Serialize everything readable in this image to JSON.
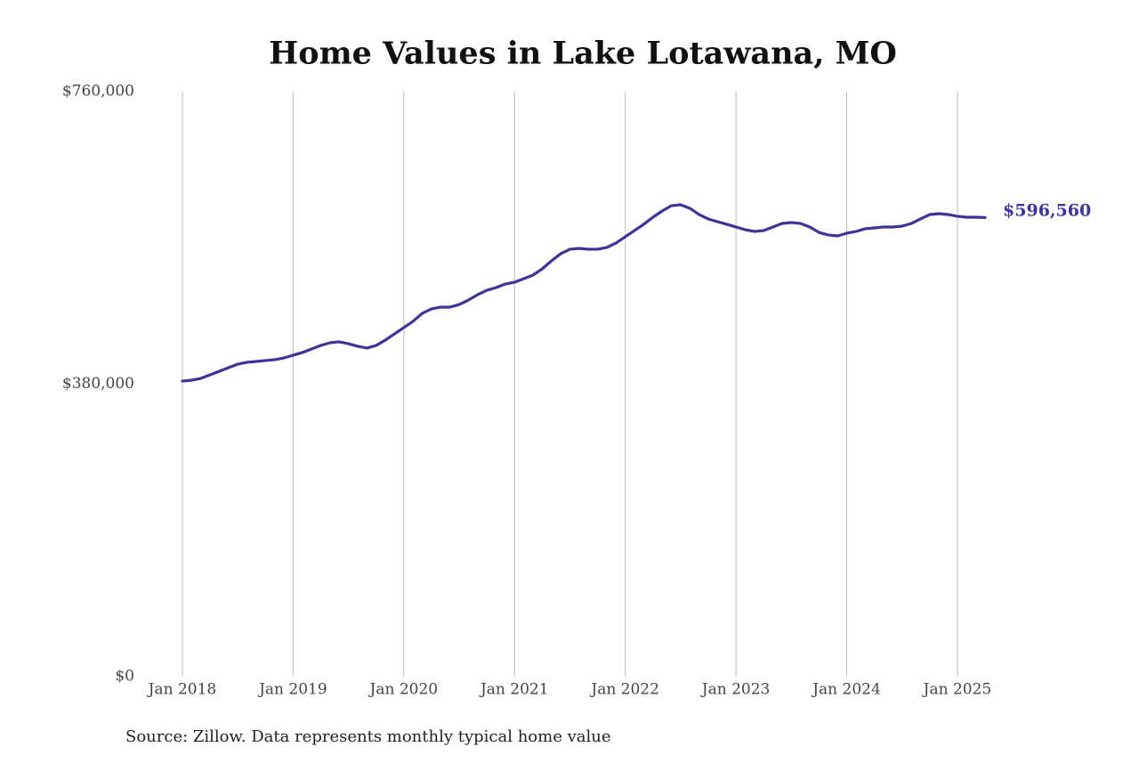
{
  "chart_data": {
    "type": "line",
    "title": "Home Values in Lake Lotawana, MO",
    "source": "Source: Zillow. Data represents monthly typical home value",
    "x": [
      "2018-01",
      "2018-02",
      "2018-03",
      "2018-04",
      "2018-05",
      "2018-06",
      "2018-07",
      "2018-08",
      "2018-09",
      "2018-10",
      "2018-11",
      "2018-12",
      "2019-01",
      "2019-02",
      "2019-03",
      "2019-04",
      "2019-05",
      "2019-06",
      "2019-07",
      "2019-08",
      "2019-09",
      "2019-10",
      "2019-11",
      "2019-12",
      "2020-01",
      "2020-02",
      "2020-03",
      "2020-04",
      "2020-05",
      "2020-06",
      "2020-07",
      "2020-08",
      "2020-09",
      "2020-10",
      "2020-11",
      "2020-12",
      "2021-01",
      "2021-02",
      "2021-03",
      "2021-04",
      "2021-05",
      "2021-06",
      "2021-07",
      "2021-08",
      "2021-09",
      "2021-10",
      "2021-11",
      "2021-12",
      "2022-01",
      "2022-02",
      "2022-03",
      "2022-04",
      "2022-05",
      "2022-06",
      "2022-07",
      "2022-08",
      "2022-09",
      "2022-10",
      "2022-11",
      "2022-12",
      "2023-01",
      "2023-02",
      "2023-03",
      "2023-04",
      "2023-05",
      "2023-06",
      "2023-07",
      "2023-08",
      "2023-09",
      "2023-10",
      "2023-11",
      "2023-12",
      "2024-01",
      "2024-02",
      "2024-03",
      "2024-04",
      "2024-05",
      "2024-06",
      "2024-07",
      "2024-08",
      "2024-09",
      "2024-10",
      "2024-11",
      "2024-12",
      "2025-01",
      "2025-02",
      "2025-03",
      "2025-04"
    ],
    "series": [
      {
        "color": "#3a3597",
        "values": [
          384000,
          385200,
          387500,
          392200,
          396800,
          401400,
          406000,
          408400,
          409500,
          410700,
          411800,
          414100,
          417600,
          421100,
          425700,
          430300,
          433800,
          435000,
          432600,
          429200,
          426900,
          430300,
          437300,
          445400,
          453500,
          461600,
          472000,
          477800,
          480100,
          480100,
          483500,
          489300,
          496300,
          502000,
          505500,
          510100,
          512500,
          517100,
          521700,
          529800,
          540200,
          549500,
          555300,
          556400,
          555300,
          555300,
          557600,
          563400,
          571500,
          579600,
          587700,
          596900,
          605000,
          611900,
          613100,
          608500,
          600400,
          594600,
          591100,
          587700,
          584200,
          580700,
          578400,
          579600,
          584200,
          588800,
          590000,
          588800,
          584200,
          577200,
          573800,
          572600,
          576100,
          578400,
          581900,
          583000,
          584200,
          584200,
          585300,
          588800,
          594600,
          600400,
          601500,
          600400,
          598100,
          596900,
          596900,
          596560
        ],
        "value_labels": [
          null,
          null,
          null,
          null,
          null,
          null,
          null,
          null,
          null,
          null,
          null,
          null,
          null,
          null,
          null,
          null,
          null,
          null,
          null,
          null,
          null,
          null,
          null,
          null,
          null,
          null,
          null,
          null,
          null,
          null,
          null,
          null,
          null,
          null,
          null,
          null,
          null,
          null,
          null,
          null,
          null,
          null,
          null,
          null,
          null,
          null,
          null,
          null,
          null,
          null,
          null,
          null,
          null,
          null,
          null,
          null,
          null,
          null,
          null,
          null,
          null,
          null,
          null,
          null,
          null,
          null,
          null,
          null,
          null,
          null,
          null,
          null,
          null,
          null,
          null,
          null,
          null,
          null,
          null,
          null,
          null,
          null,
          null,
          null,
          null,
          null,
          null,
          "$596,560"
        ]
      }
    ],
    "xlim": [
      "2017-09",
      "2025-12"
    ],
    "xticks": [
      {
        "value": "2018-01",
        "label": "Jan 2018"
      },
      {
        "value": "2019-01",
        "label": "Jan 2019"
      },
      {
        "value": "2020-01",
        "label": "Jan 2020"
      },
      {
        "value": "2021-01",
        "label": "Jan 2021"
      },
      {
        "value": "2022-01",
        "label": "Jan 2022"
      },
      {
        "value": "2023-01",
        "label": "Jan 2023"
      },
      {
        "value": "2024-01",
        "label": "Jan 2024"
      },
      {
        "value": "2025-01",
        "label": "Jan 2025"
      }
    ],
    "ylim": [
      0,
      760000
    ],
    "yticks": [
      {
        "value": 0,
        "label": "$0"
      },
      {
        "value": 380000,
        "label": "$380,000"
      },
      {
        "value": 760000,
        "label": "$760,000"
      }
    ],
    "grid": "x"
  }
}
